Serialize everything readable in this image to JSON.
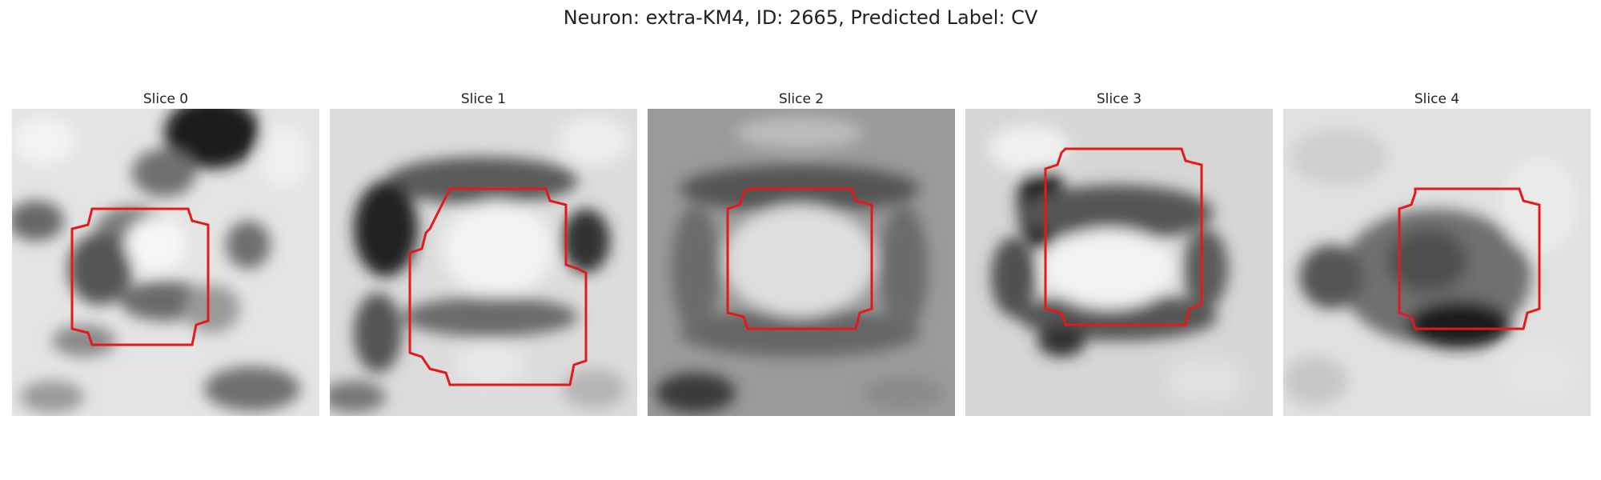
{
  "figure": {
    "title": "Neuron: extra-KM4, ID: 2665, Predicted Label: CV",
    "contour_color": "#e31a1c"
  },
  "slices": [
    {
      "title": "Slice 0"
    },
    {
      "title": "Slice 1"
    },
    {
      "title": "Slice 2"
    },
    {
      "title": "Slice 3"
    },
    {
      "title": "Slice 4"
    }
  ]
}
